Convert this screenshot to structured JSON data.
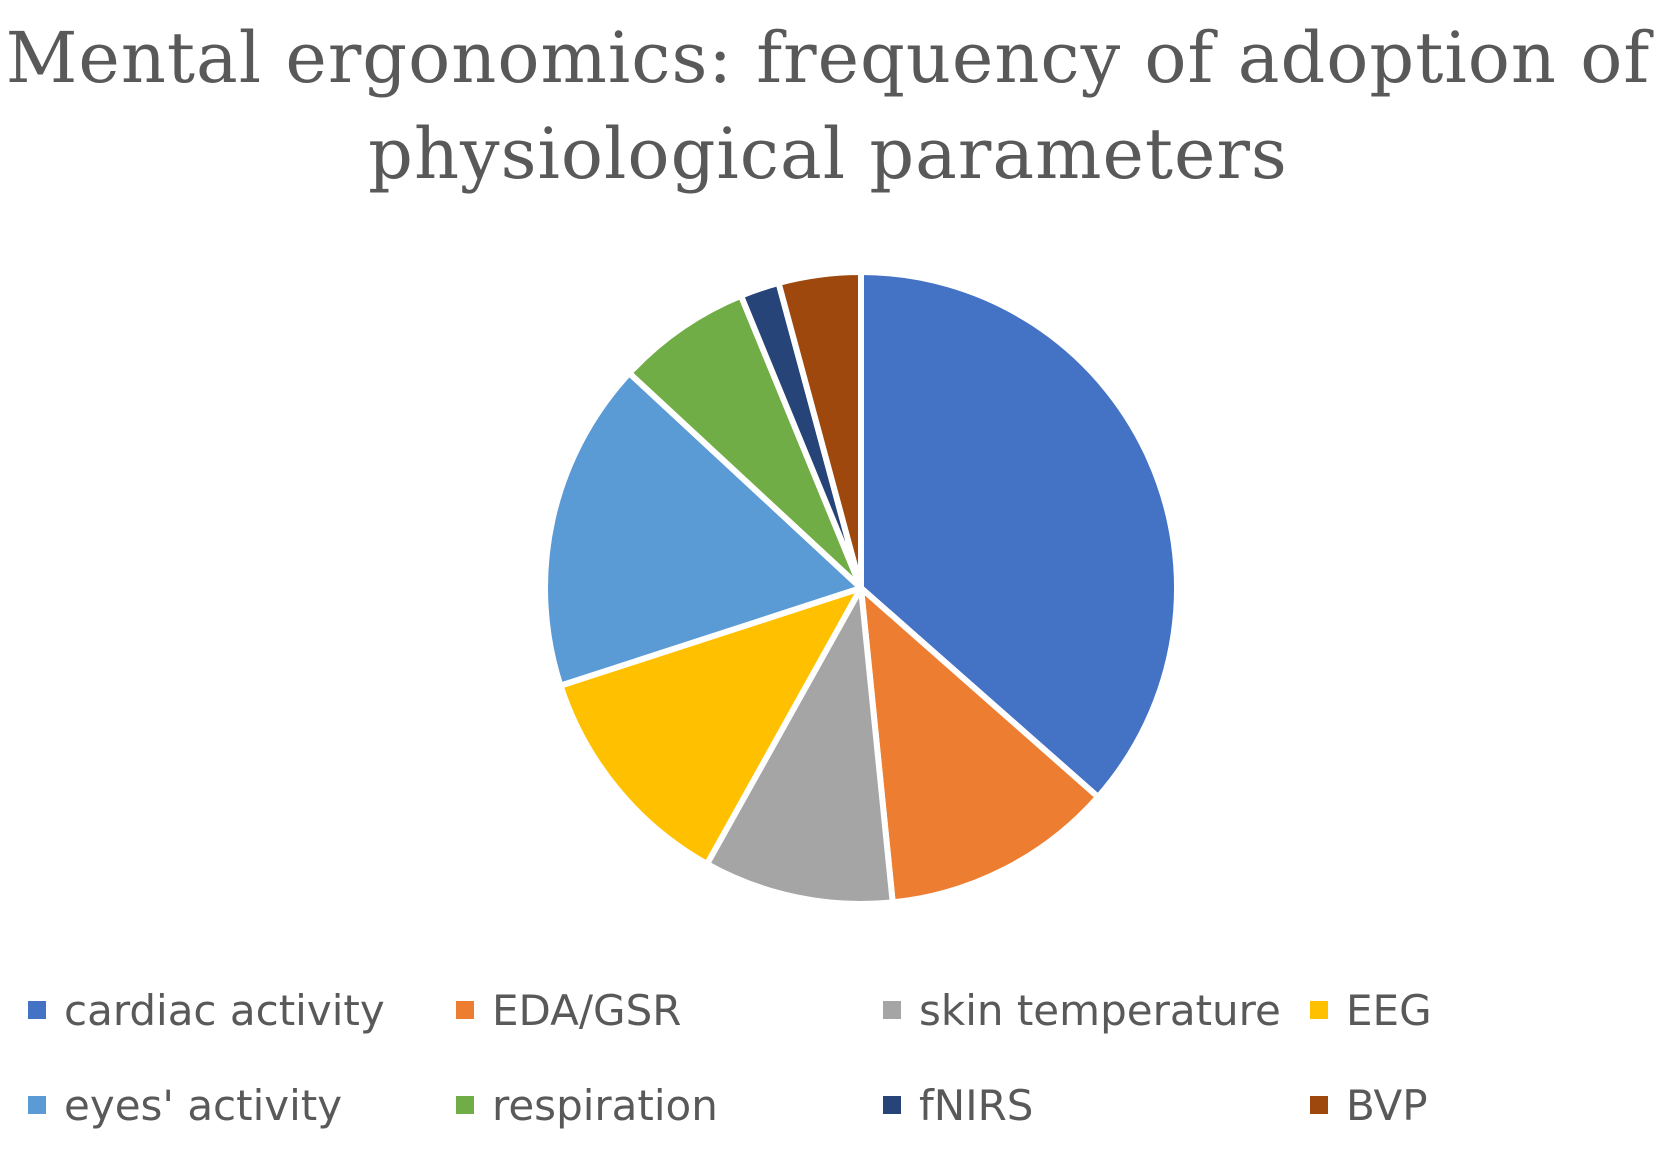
{
  "chart_data": {
    "type": "pie",
    "title_line1": "Mental ergonomics: frequency of adoption of",
    "title_line2": "physiological parameters",
    "categories": [
      "cardiac activity",
      "EDA/GSR",
      "skin temperature",
      "EEG",
      "eyes' activity",
      "respiration",
      "fNIRS",
      "BVP"
    ],
    "values": [
      36.5,
      11.9,
      9.7,
      11.9,
      16.9,
      6.9,
      2.0,
      4.2
    ],
    "colors": [
      "#4472C4",
      "#ED7D31",
      "#A5A5A5",
      "#FFC000",
      "#5B9BD5",
      "#70AD47",
      "#264478",
      "#9E480E"
    ],
    "legend_position": "bottom",
    "start_angle": "12 o'clock",
    "direction": "clockwise"
  }
}
